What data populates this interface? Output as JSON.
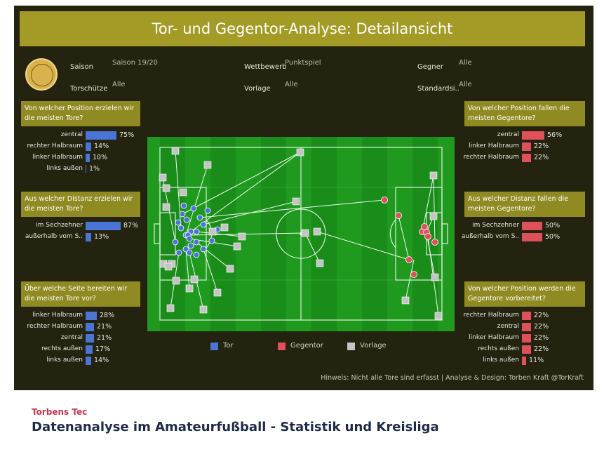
{
  "title": "Tor- und Gegentor-Analyse: Detailansicht",
  "filters": {
    "saison_label": "Saison",
    "saison_value": "Saison 19/20",
    "wettbewerb_label": "Wettbewerb",
    "wettbewerb_value": "Punktspiel",
    "gegner_label": "Gegner",
    "gegner_value": "Alle",
    "torschuetze_label": "Torschütze",
    "torschuetze_value": "Alle",
    "vorlage_label": "Vorlage",
    "vorlage_value": "Alle",
    "standard_label": "Standardsi..",
    "standard_value": "Alle"
  },
  "panels": [
    {
      "question": "Von welcher Position erzielen wir die meisten Tore?",
      "color": "#4a74d6",
      "rows": [
        {
          "label": "zentral",
          "value": 75,
          "text": "75%"
        },
        {
          "label": "rechter Halbraum",
          "value": 14,
          "text": "14%"
        },
        {
          "label": "linker Halbraum",
          "value": 10,
          "text": "10%"
        },
        {
          "label": "links außen",
          "value": 1,
          "text": "1%"
        }
      ]
    },
    {
      "question": "Aus welcher Distanz erzielen wir die meisten Tore?",
      "color": "#4a74d6",
      "rows": [
        {
          "label": "im Sechzehner",
          "value": 87,
          "text": "87%"
        },
        {
          "label": "außerhalb vom S..",
          "value": 13,
          "text": "13%"
        }
      ]
    },
    {
      "question": "Über welche Seite bereiten wir die meisten Tore vor?",
      "color": "#4a74d6",
      "rows": [
        {
          "label": "linker Halbraum",
          "value": 28,
          "text": "28%"
        },
        {
          "label": "rechter Halbraum",
          "value": 21,
          "text": "21%"
        },
        {
          "label": "zentral",
          "value": 21,
          "text": "21%"
        },
        {
          "label": "rechts außen",
          "value": 17,
          "text": "17%"
        },
        {
          "label": "links außen",
          "value": 14,
          "text": "14%"
        }
      ]
    },
    {
      "question": "Von welcher Position fallen die meisten Gegentore?",
      "color": "#e0505a",
      "rows": [
        {
          "label": "zentral",
          "value": 56,
          "text": "56%"
        },
        {
          "label": "linker Halbraum",
          "value": 22,
          "text": "22%"
        },
        {
          "label": "rechter Halbraum",
          "value": 22,
          "text": "22%"
        }
      ]
    },
    {
      "question": "Aus welcher Distanz fallen die meisten Gegentore?",
      "color": "#e0505a",
      "rows": [
        {
          "label": "im Sechzehner",
          "value": 50,
          "text": "50%"
        },
        {
          "label": "außerhalb vom S..",
          "value": 50,
          "text": "50%"
        }
      ]
    },
    {
      "question": "Von welcher Position werden die Gegentore vorbereitet?",
      "color": "#e0505a",
      "rows": [
        {
          "label": "rechter Halbraum",
          "value": 22,
          "text": "22%"
        },
        {
          "label": "zentral",
          "value": 22,
          "text": "22%"
        },
        {
          "label": "linker Halbraum",
          "value": 22,
          "text": "22%"
        },
        {
          "label": "rechts außen",
          "value": 22,
          "text": "22%"
        },
        {
          "label": "links außen",
          "value": 11,
          "text": "11%"
        }
      ]
    }
  ],
  "legend": [
    {
      "label": "Tor",
      "color": "#4a74d6"
    },
    {
      "label": "Gegentor",
      "color": "#e0505a"
    },
    {
      "label": "Vorlage",
      "color": "#c4c4c4"
    }
  ],
  "hint": "Hinweis: Nicht alle Tore sind erfasst | Analyse & Design: Torben Kraft @TorKraft",
  "footer": {
    "brand": "Torbens Tec",
    "title": "Datenanalyse im Amateurfußball - Statistik und Kreisliga"
  },
  "colors": {
    "tor": "#4a74d6",
    "gegentor": "#e0505a",
    "vorlage": "#c4c4c4",
    "pitch": "#1f9a1f",
    "header": "#a39b26",
    "panel": "#8f8a22"
  }
}
